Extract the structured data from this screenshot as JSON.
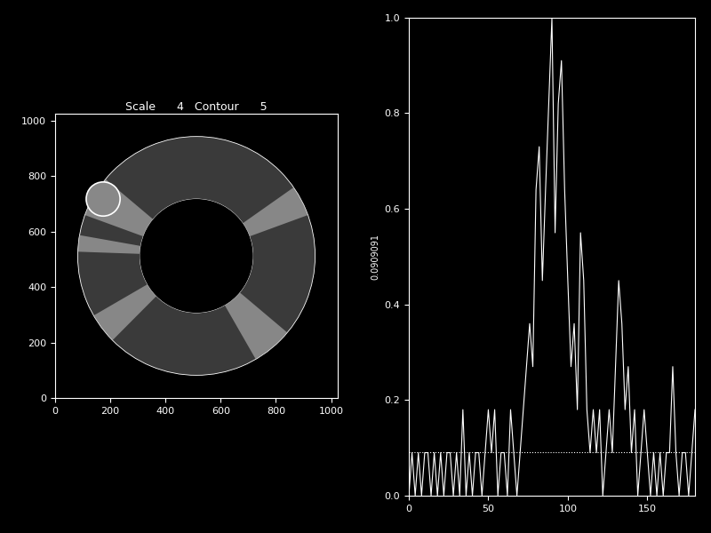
{
  "chart_data": [
    {
      "type": "image",
      "title": "Scale      4   Contour      5",
      "xlim": [
        0,
        1024
      ],
      "ylim": [
        0,
        1024
      ],
      "xticks": [
        0,
        200,
        400,
        600,
        800,
        1000
      ],
      "yticks": [
        0,
        200,
        400,
        600,
        800,
        1000
      ]
    },
    {
      "type": "line",
      "ylabel": "0.0909091",
      "xlim": [
        0,
        180
      ],
      "ylim": [
        0,
        1
      ],
      "xticks": [
        0,
        50,
        100,
        150
      ],
      "yticks": [
        {
          "value": 0,
          "label": "0.0"
        },
        0.2,
        0.4,
        0.6,
        0.8,
        {
          "value": 1,
          "label": "1.0"
        }
      ],
      "color": "#ffffff",
      "series": [
        {
          "x": [
            0,
            2,
            4,
            6,
            8,
            10,
            12,
            14,
            16,
            18,
            20,
            22,
            24,
            26,
            28,
            30,
            32,
            34,
            36,
            38,
            40,
            42,
            44,
            46,
            48,
            50,
            52,
            54,
            56,
            58,
            60,
            62,
            64,
            66,
            68,
            70,
            72,
            74,
            76,
            78,
            80,
            82,
            84,
            86,
            88,
            90,
            92,
            94,
            96,
            98,
            100,
            102,
            104,
            106,
            108,
            110,
            112,
            114,
            116,
            118,
            120,
            122,
            124,
            126,
            128,
            130,
            132,
            134,
            136,
            138,
            140,
            142,
            144,
            146,
            148,
            150,
            152,
            154,
            156,
            158,
            160,
            162,
            164,
            166,
            168,
            170,
            172,
            174,
            176,
            178,
            180
          ],
          "values": [
            0,
            0.09,
            0,
            0.09,
            0,
            0.09,
            0.09,
            0,
            0.09,
            0,
            0.09,
            0,
            0.09,
            0.09,
            0,
            0.09,
            0,
            0.18,
            0,
            0.09,
            0,
            0.09,
            0.09,
            0,
            0.09,
            0.18,
            0.09,
            0.18,
            0,
            0.09,
            0.09,
            0,
            0.18,
            0.09,
            0,
            0.09,
            0.18,
            0.27,
            0.36,
            0.27,
            0.64,
            0.73,
            0.45,
            0.64,
            0.82,
            1.0,
            0.55,
            0.82,
            0.91,
            0.64,
            0.45,
            0.27,
            0.36,
            0.18,
            0.55,
            0.45,
            0.18,
            0.09,
            0.18,
            0.09,
            0.18,
            0,
            0.09,
            0.18,
            0.09,
            0.27,
            0.45,
            0.36,
            0.18,
            0.27,
            0.09,
            0.18,
            0,
            0.09,
            0.18,
            0.09,
            0,
            0.09,
            0,
            0.09,
            0,
            0.09,
            0.09,
            0.27,
            0.09,
            0,
            0.09,
            0.09,
            0,
            0.09,
            0.18
          ],
          "line_style": "solid"
        },
        {
          "x": [
            0,
            180
          ],
          "values": [
            0.0909091,
            0.0909091
          ],
          "line_style": "dotted"
        }
      ]
    }
  ]
}
